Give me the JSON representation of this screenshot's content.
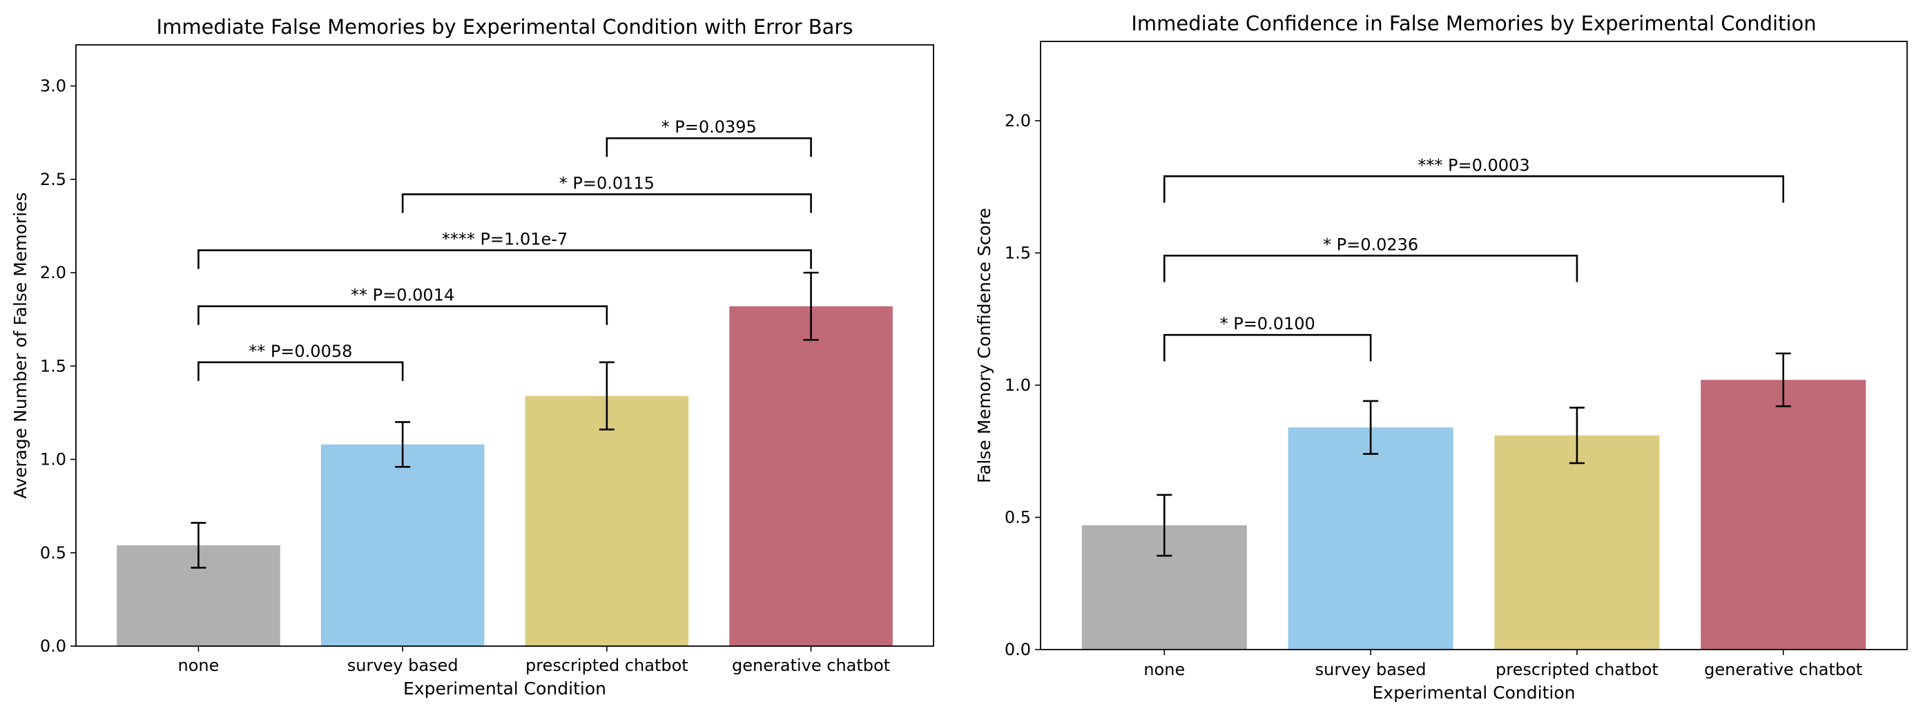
{
  "colors": {
    "none": "#b0b0b0",
    "survey_based": "#97c9ea",
    "prescripted_chatbot": "#dbcc80",
    "generative_chatbot": "#bf6a76",
    "axis": "#000000"
  },
  "chart_data": [
    {
      "type": "bar",
      "title": "Immediate False Memories by Experimental Condition with Error Bars",
      "xlabel": "Experimental Condition",
      "ylabel": "Average Number of False Memories",
      "categories": [
        "none",
        "survey based",
        "prescripted chatbot",
        "generative chatbot"
      ],
      "values": [
        0.54,
        1.08,
        1.34,
        1.82
      ],
      "errors": [
        0.12,
        0.12,
        0.18,
        0.18
      ],
      "ylim": [
        0,
        3.22
      ],
      "yticks": [
        0.0,
        0.5,
        1.0,
        1.5,
        2.0,
        2.5,
        3.0
      ],
      "ytick_labels": [
        "0.0",
        "0.5",
        "1.0",
        "1.5",
        "2.0",
        "2.5",
        "3.0"
      ],
      "bar_colors": [
        "#b0b0b0",
        "#97c9ea",
        "#dbcc80",
        "#bf6a76"
      ],
      "significance": [
        {
          "from": 0,
          "to": 1,
          "y": 1.52,
          "drop": 0.1,
          "label": "** P=0.0058"
        },
        {
          "from": 0,
          "to": 2,
          "y": 1.82,
          "drop": 0.1,
          "label": "** P=0.0014"
        },
        {
          "from": 0,
          "to": 3,
          "y": 2.12,
          "drop": 0.1,
          "label": "**** P=1.01e-7"
        },
        {
          "from": 1,
          "to": 3,
          "y": 2.42,
          "drop": 0.1,
          "label": "* P=0.0115"
        },
        {
          "from": 2,
          "to": 3,
          "y": 2.72,
          "drop": 0.1,
          "label": "* P=0.0395"
        }
      ]
    },
    {
      "type": "bar",
      "title": "Immediate Confidence in False Memories by Experimental Condition",
      "xlabel": "Experimental Condition",
      "ylabel": "False Memory Confidence Score",
      "categories": [
        "none",
        "survey based",
        "prescripted chatbot",
        "generative chatbot"
      ],
      "values": [
        0.47,
        0.84,
        0.81,
        1.02
      ],
      "errors": [
        0.115,
        0.1,
        0.105,
        0.1
      ],
      "ylim": [
        0,
        2.3
      ],
      "yticks": [
        0.0,
        0.5,
        1.0,
        1.5,
        2.0
      ],
      "ytick_labels": [
        "0.0",
        "0.5",
        "1.0",
        "1.5",
        "2.0"
      ],
      "bar_colors": [
        "#b0b0b0",
        "#97c9ea",
        "#dbcc80",
        "#bf6a76"
      ],
      "significance": [
        {
          "from": 0,
          "to": 1,
          "y": 1.19,
          "drop": 0.1,
          "label": "* P=0.0100"
        },
        {
          "from": 0,
          "to": 2,
          "y": 1.49,
          "drop": 0.1,
          "label": "* P=0.0236"
        },
        {
          "from": 0,
          "to": 3,
          "y": 1.79,
          "drop": 0.1,
          "label": "*** P=0.0003"
        }
      ]
    }
  ]
}
